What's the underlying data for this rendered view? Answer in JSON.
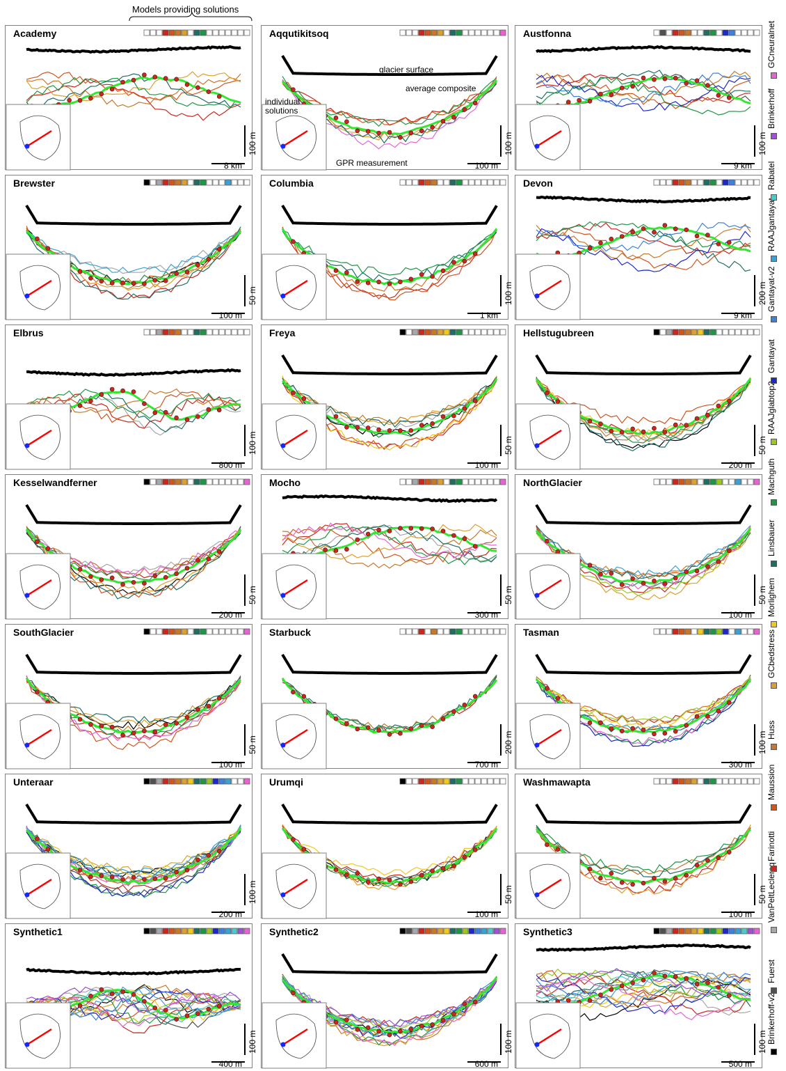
{
  "header": {
    "models_label": "Models providing solutions"
  },
  "legend": [
    {
      "name": "Brinkerhoff-v2",
      "color": "#000000"
    },
    {
      "name": "Fuerst",
      "color": "#505050"
    },
    {
      "name": "VanPeltLeclercq",
      "color": "#a8a8a8"
    },
    {
      "name": "Farinotti",
      "color": "#c8281e"
    },
    {
      "name": "Maussion",
      "color": "#d0561e"
    },
    {
      "name": "Huss",
      "color": "#c87828"
    },
    {
      "name": "GCbedstress",
      "color": "#dca032"
    },
    {
      "name": "Morlighem",
      "color": "#f0c81e"
    },
    {
      "name": "Linsbauer",
      "color": "#1e6e64"
    },
    {
      "name": "Machguth",
      "color": "#1e9646"
    },
    {
      "name": "RAAJglabtop2",
      "color": "#9ac81e"
    },
    {
      "name": "Gantayat",
      "color": "#1e28c8"
    },
    {
      "name": "Gantayat-v2",
      "color": "#3c82dc"
    },
    {
      "name": "RAAJgantayat",
      "color": "#3ca0d2"
    },
    {
      "name": "Rabatel",
      "color": "#50c8c8"
    },
    {
      "name": "Brinkerhoff",
      "color": "#a050d2"
    },
    {
      "name": "GCneuralnet",
      "color": "#e664d2"
    }
  ],
  "annotations": {
    "glacier_surface": "glacier surface",
    "average_composite": "average composite",
    "individual_solutions": "individual solutions",
    "gpr_measurement": "GPR measurement"
  },
  "chart_data": [
    {
      "type": "line",
      "title": "Academy",
      "vertical_scale": "100 m",
      "horizontal_scale": "8 km",
      "models": [
        0,
        0,
        0,
        1,
        1,
        1,
        1,
        0,
        1,
        1,
        0,
        0,
        0,
        0,
        0,
        0,
        0
      ]
    },
    {
      "type": "line",
      "title": "Aqqutikitsoq",
      "vertical_scale": "100 m",
      "horizontal_scale": "100 m",
      "models": [
        0,
        0,
        0,
        1,
        1,
        1,
        1,
        0,
        1,
        1,
        0,
        0,
        0,
        0,
        0,
        0,
        1
      ]
    },
    {
      "type": "line",
      "title": "Austfonna",
      "vertical_scale": "100 m",
      "horizontal_scale": "9 km",
      "models": [
        0,
        1,
        0,
        1,
        1,
        1,
        0,
        0,
        1,
        1,
        0,
        1,
        1,
        0,
        0,
        0,
        0
      ]
    },
    {
      "type": "line",
      "title": "Brewster",
      "vertical_scale": "50 m",
      "horizontal_scale": "100 m",
      "models": [
        1,
        0,
        1,
        1,
        1,
        1,
        1,
        0,
        1,
        1,
        0,
        0,
        0,
        1,
        0,
        0,
        0
      ]
    },
    {
      "type": "line",
      "title": "Columbia",
      "vertical_scale": "100 m",
      "horizontal_scale": "1 km",
      "models": [
        0,
        0,
        0,
        1,
        1,
        1,
        0,
        0,
        1,
        1,
        0,
        0,
        0,
        0,
        0,
        0,
        0
      ]
    },
    {
      "type": "line",
      "title": "Devon",
      "vertical_scale": "200 m",
      "horizontal_scale": "9 km",
      "models": [
        0,
        0,
        0,
        1,
        1,
        1,
        0,
        0,
        1,
        1,
        0,
        1,
        1,
        0,
        0,
        0,
        0
      ]
    },
    {
      "type": "line",
      "title": "Elbrus",
      "vertical_scale": "100 m",
      "horizontal_scale": "800 m",
      "models": [
        0,
        0,
        1,
        1,
        1,
        1,
        0,
        0,
        1,
        1,
        0,
        0,
        0,
        0,
        0,
        0,
        0
      ]
    },
    {
      "type": "line",
      "title": "Freya",
      "vertical_scale": "50 m",
      "horizontal_scale": "100 m",
      "models": [
        1,
        0,
        1,
        1,
        1,
        1,
        1,
        1,
        1,
        1,
        0,
        0,
        0,
        0,
        0,
        0,
        0
      ]
    },
    {
      "type": "line",
      "title": "Hellstugubreen",
      "vertical_scale": "50 m",
      "horizontal_scale": "200 m",
      "models": [
        1,
        0,
        1,
        1,
        1,
        1,
        1,
        1,
        1,
        1,
        0,
        0,
        0,
        0,
        0,
        0,
        0
      ]
    },
    {
      "type": "line",
      "title": "Kesselwandferner",
      "vertical_scale": "50 m",
      "horizontal_scale": "200 m",
      "models": [
        1,
        0,
        1,
        1,
        1,
        1,
        1,
        0,
        1,
        1,
        0,
        0,
        0,
        0,
        0,
        0,
        1
      ]
    },
    {
      "type": "line",
      "title": "Mocho",
      "vertical_scale": "50 m",
      "horizontal_scale": "300 m",
      "models": [
        0,
        0,
        1,
        1,
        1,
        1,
        1,
        0,
        1,
        1,
        0,
        0,
        0,
        0,
        0,
        0,
        1
      ]
    },
    {
      "type": "line",
      "title": "NorthGlacier",
      "vertical_scale": "50 m",
      "horizontal_scale": "100 m",
      "models": [
        0,
        0,
        0,
        1,
        1,
        1,
        1,
        0,
        1,
        1,
        1,
        0,
        0,
        1,
        0,
        0,
        1
      ]
    },
    {
      "type": "line",
      "title": "SouthGlacier",
      "vertical_scale": "50 m",
      "horizontal_scale": "100 m",
      "models": [
        1,
        0,
        0,
        1,
        1,
        1,
        1,
        0,
        1,
        1,
        0,
        0,
        0,
        0,
        0,
        0,
        1
      ]
    },
    {
      "type": "line",
      "title": "Starbuck",
      "vertical_scale": "200 m",
      "horizontal_scale": "700 m",
      "models": [
        0,
        0,
        0,
        1,
        0,
        1,
        0,
        0,
        1,
        1,
        0,
        0,
        0,
        0,
        0,
        0,
        0
      ]
    },
    {
      "type": "line",
      "title": "Tasman",
      "vertical_scale": "100 m",
      "horizontal_scale": "300 m",
      "models": [
        0,
        0,
        0,
        1,
        1,
        1,
        0,
        1,
        1,
        1,
        1,
        1,
        0,
        1,
        0,
        0,
        1
      ]
    },
    {
      "type": "line",
      "title": "Unteraar",
      "vertical_scale": "100 m",
      "horizontal_scale": "200 m",
      "models": [
        1,
        1,
        1,
        1,
        1,
        1,
        1,
        1,
        1,
        1,
        1,
        1,
        1,
        1,
        0,
        0,
        1
      ]
    },
    {
      "type": "line",
      "title": "Urumqi",
      "vertical_scale": "50 m",
      "horizontal_scale": "100 m",
      "models": [
        1,
        0,
        0,
        1,
        1,
        1,
        1,
        1,
        1,
        1,
        0,
        0,
        0,
        0,
        0,
        0,
        0
      ]
    },
    {
      "type": "line",
      "title": "Washmawapta",
      "vertical_scale": "50 m",
      "horizontal_scale": "100 m",
      "models": [
        0,
        0,
        0,
        1,
        1,
        1,
        1,
        0,
        1,
        1,
        0,
        0,
        0,
        0,
        0,
        0,
        0
      ]
    },
    {
      "type": "line",
      "title": "Synthetic1",
      "vertical_scale": "100 m",
      "horizontal_scale": "400 m",
      "models": [
        1,
        1,
        1,
        1,
        1,
        1,
        1,
        1,
        1,
        1,
        1,
        1,
        1,
        1,
        1,
        1,
        1
      ]
    },
    {
      "type": "line",
      "title": "Synthetic2",
      "vertical_scale": "100 m",
      "horizontal_scale": "600 m",
      "models": [
        1,
        1,
        1,
        1,
        1,
        1,
        1,
        1,
        1,
        1,
        1,
        1,
        1,
        1,
        1,
        1,
        1
      ]
    },
    {
      "type": "line",
      "title": "Synthetic3",
      "vertical_scale": "100 m",
      "horizontal_scale": "500 m",
      "models": [
        1,
        1,
        1,
        1,
        1,
        1,
        1,
        1,
        1,
        1,
        1,
        1,
        1,
        1,
        1,
        1,
        1
      ]
    }
  ]
}
